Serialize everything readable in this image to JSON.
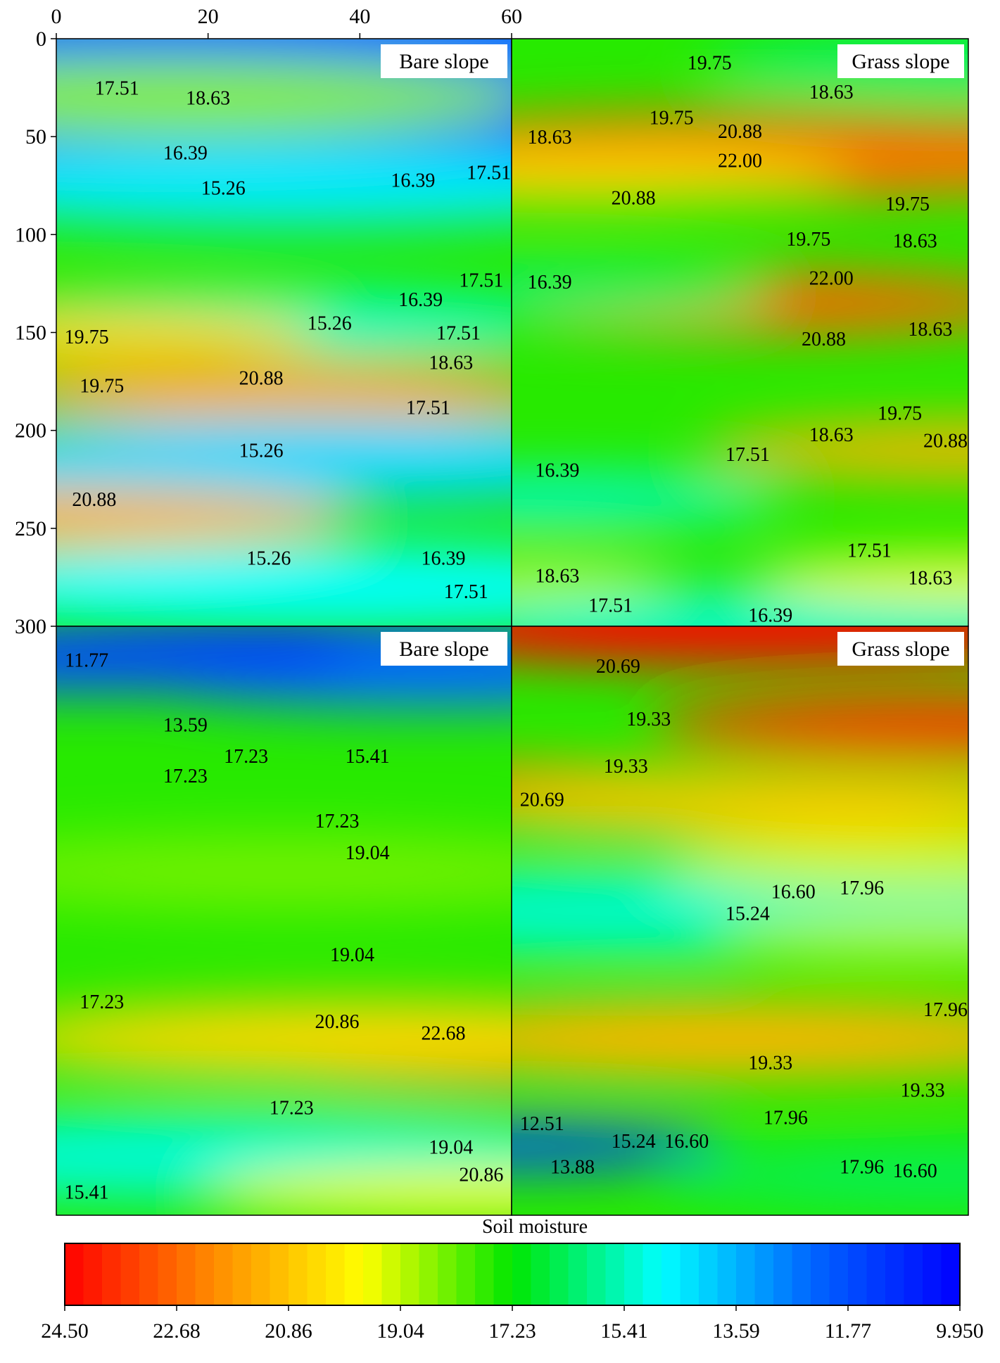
{
  "chart_data": {
    "type": "heatmap",
    "colorbar_title": "Soil moisture",
    "colorbar_ticks": [
      "24.50",
      "22.68",
      "20.86",
      "19.04",
      "17.23",
      "15.41",
      "13.59",
      "11.77",
      "9.950"
    ],
    "colorbar_range": [
      24.5,
      9.95
    ],
    "colormap": [
      "#ff0000",
      "#ff8c00",
      "#ffff00",
      "#00e600",
      "#00ffff",
      "#0066ff",
      "#0000ff"
    ],
    "x_axis": {
      "range": [
        0,
        60
      ],
      "ticks": [
        "0",
        "20",
        "40",
        "60"
      ]
    },
    "y_axis": {
      "range": [
        0,
        300
      ],
      "ticks": [
        "0",
        "50",
        "100",
        "150",
        "200",
        "250",
        "300"
      ]
    },
    "panels": [
      {
        "label": "Bare slope",
        "position": "top-left",
        "blobs": [
          {
            "x": 24,
            "y": 30,
            "r": 90,
            "v": 11
          },
          {
            "x": 60,
            "y": 0,
            "r": 60,
            "v": 12.5
          },
          {
            "x": 30,
            "y": 75,
            "r": 38,
            "v": 14.5
          },
          {
            "x": 28,
            "y": 145,
            "r": 30,
            "v": 15.3
          },
          {
            "x": 30,
            "y": 180,
            "r": 28,
            "v": 21.5
          },
          {
            "x": 35,
            "y": 215,
            "r": 40,
            "v": 14.2
          },
          {
            "x": 35,
            "y": 280,
            "r": 40,
            "v": 14.8
          },
          {
            "x": 0,
            "y": 150,
            "r": 25,
            "v": 20.5
          },
          {
            "x": 0,
            "y": 245,
            "r": 28,
            "v": 21.3
          },
          {
            "x": 15,
            "y": 30,
            "r": 35,
            "v": 18.5
          }
        ],
        "labels": [
          {
            "text": "17.51",
            "x": 8,
            "y": 25
          },
          {
            "text": "18.63",
            "x": 20,
            "y": 30
          },
          {
            "text": "16.39",
            "x": 17,
            "y": 58
          },
          {
            "text": "15.26",
            "x": 22,
            "y": 76
          },
          {
            "text": "16.39",
            "x": 47,
            "y": 72
          },
          {
            "text": "17.51",
            "x": 57,
            "y": 68
          },
          {
            "text": "17.51",
            "x": 56,
            "y": 123
          },
          {
            "text": "16.39",
            "x": 48,
            "y": 133
          },
          {
            "text": "15.26",
            "x": 36,
            "y": 145
          },
          {
            "text": "17.51",
            "x": 53,
            "y": 150
          },
          {
            "text": "19.75",
            "x": 4,
            "y": 152
          },
          {
            "text": "18.63",
            "x": 52,
            "y": 165
          },
          {
            "text": "19.75",
            "x": 6,
            "y": 177
          },
          {
            "text": "20.88",
            "x": 27,
            "y": 173
          },
          {
            "text": "17.51",
            "x": 49,
            "y": 188
          },
          {
            "text": "15.26",
            "x": 27,
            "y": 210
          },
          {
            "text": "20.88",
            "x": 5,
            "y": 235
          },
          {
            "text": "15.26",
            "x": 28,
            "y": 265
          },
          {
            "text": "16.39",
            "x": 51,
            "y": 265
          },
          {
            "text": "17.51",
            "x": 54,
            "y": 282
          }
        ]
      },
      {
        "label": "Grass slope",
        "position": "top-right",
        "blobs": [
          {
            "x": 30,
            "y": 60,
            "r": 40,
            "v": 23
          },
          {
            "x": 60,
            "y": 60,
            "r": 35,
            "v": 22.5
          },
          {
            "x": 10,
            "y": 70,
            "r": 25,
            "v": 20.5
          },
          {
            "x": 32,
            "y": 135,
            "r": 28,
            "v": 22.8
          },
          {
            "x": 0,
            "y": 130,
            "r": 25,
            "v": 16.2
          },
          {
            "x": 5,
            "y": 235,
            "r": 22,
            "v": 15.2
          },
          {
            "x": 35,
            "y": 300,
            "r": 35,
            "v": 15.3
          },
          {
            "x": 60,
            "y": 210,
            "r": 25,
            "v": 21.3
          },
          {
            "x": 60,
            "y": 275,
            "r": 20,
            "v": 19.8
          },
          {
            "x": 60,
            "y": 15,
            "r": 25,
            "v": 16
          },
          {
            "x": 0,
            "y": 275,
            "r": 15,
            "v": 19.2
          }
        ],
        "labels": [
          {
            "text": "19.75",
            "x": 26,
            "y": 12
          },
          {
            "text": "18.63",
            "x": 42,
            "y": 27
          },
          {
            "text": "19.75",
            "x": 21,
            "y": 40
          },
          {
            "text": "18.63",
            "x": 5,
            "y": 50
          },
          {
            "text": "20.88",
            "x": 30,
            "y": 47
          },
          {
            "text": "22.00",
            "x": 30,
            "y": 62
          },
          {
            "text": "20.88",
            "x": 16,
            "y": 81
          },
          {
            "text": "19.75",
            "x": 52,
            "y": 84
          },
          {
            "text": "19.75",
            "x": 39,
            "y": 102
          },
          {
            "text": "18.63",
            "x": 53,
            "y": 103
          },
          {
            "text": "16.39",
            "x": 5,
            "y": 124
          },
          {
            "text": "22.00",
            "x": 42,
            "y": 122
          },
          {
            "text": "20.88",
            "x": 41,
            "y": 153
          },
          {
            "text": "18.63",
            "x": 55,
            "y": 148
          },
          {
            "text": "19.75",
            "x": 51,
            "y": 191
          },
          {
            "text": "18.63",
            "x": 42,
            "y": 202
          },
          {
            "text": "20.88",
            "x": 57,
            "y": 205
          },
          {
            "text": "17.51",
            "x": 31,
            "y": 212
          },
          {
            "text": "16.39",
            "x": 6,
            "y": 220
          },
          {
            "text": "17.51",
            "x": 47,
            "y": 261
          },
          {
            "text": "18.63",
            "x": 55,
            "y": 275
          },
          {
            "text": "18.63",
            "x": 6,
            "y": 274
          },
          {
            "text": "17.51",
            "x": 13,
            "y": 289
          },
          {
            "text": "16.39",
            "x": 34,
            "y": 294
          }
        ]
      },
      {
        "label": "Bare slope",
        "position": "bottom-left",
        "blobs": [
          {
            "x": 25,
            "y": 15,
            "r": 35,
            "v": 10.5
          },
          {
            "x": 50,
            "y": 25,
            "r": 30,
            "v": 12.5
          },
          {
            "x": 5,
            "y": 20,
            "r": 25,
            "v": 11.8
          },
          {
            "x": 58,
            "y": 220,
            "r": 25,
            "v": 23.2
          },
          {
            "x": 40,
            "y": 210,
            "r": 35,
            "v": 20.5
          },
          {
            "x": 30,
            "y": 125,
            "r": 35,
            "v": 18.3
          },
          {
            "x": 20,
            "y": 270,
            "r": 40,
            "v": 15.2
          },
          {
            "x": 58,
            "y": 290,
            "r": 15,
            "v": 21.5
          },
          {
            "x": 55,
            "y": 290,
            "r": 25,
            "v": 19.5
          }
        ],
        "labels": [
          {
            "text": "11.77",
            "x": 4,
            "y": 17
          },
          {
            "text": "13.59",
            "x": 17,
            "y": 50
          },
          {
            "text": "17.23",
            "x": 25,
            "y": 66
          },
          {
            "text": "17.23",
            "x": 17,
            "y": 76
          },
          {
            "text": "15.41",
            "x": 41,
            "y": 66
          },
          {
            "text": "17.23",
            "x": 37,
            "y": 99
          },
          {
            "text": "19.04",
            "x": 41,
            "y": 115
          },
          {
            "text": "19.04",
            "x": 39,
            "y": 167
          },
          {
            "text": "17.23",
            "x": 6,
            "y": 191
          },
          {
            "text": "20.86",
            "x": 37,
            "y": 201
          },
          {
            "text": "22.68",
            "x": 51,
            "y": 207
          },
          {
            "text": "17.23",
            "x": 31,
            "y": 245
          },
          {
            "text": "19.04",
            "x": 52,
            "y": 265
          },
          {
            "text": "20.86",
            "x": 56,
            "y": 279
          },
          {
            "text": "15.41",
            "x": 4,
            "y": 288
          }
        ]
      },
      {
        "label": "Grass slope",
        "position": "bottom-right",
        "blobs": [
          {
            "x": 30,
            "y": 0,
            "r": 35,
            "v": 24.5
          },
          {
            "x": 60,
            "y": 50,
            "r": 30,
            "v": 23.5
          },
          {
            "x": 0,
            "y": 85,
            "r": 25,
            "v": 23
          },
          {
            "x": 15,
            "y": 145,
            "r": 40,
            "v": 15.3
          },
          {
            "x": 30,
            "y": 210,
            "r": 35,
            "v": 21.2
          },
          {
            "x": 0,
            "y": 265,
            "r": 20,
            "v": 11.5
          },
          {
            "x": 55,
            "y": 280,
            "r": 25,
            "v": 16.3
          },
          {
            "x": 55,
            "y": 160,
            "r": 20,
            "v": 19
          },
          {
            "x": 35,
            "y": 90,
            "r": 30,
            "v": 20.8
          },
          {
            "x": 55,
            "y": 120,
            "r": 25,
            "v": 19.2
          }
        ],
        "labels": [
          {
            "text": "20.69",
            "x": 14,
            "y": 20
          },
          {
            "text": "19.33",
            "x": 18,
            "y": 47
          },
          {
            "text": "19.33",
            "x": 15,
            "y": 71
          },
          {
            "text": "20.69",
            "x": 4,
            "y": 88
          },
          {
            "text": "16.60",
            "x": 37,
            "y": 135
          },
          {
            "text": "17.96",
            "x": 46,
            "y": 133
          },
          {
            "text": "15.24",
            "x": 31,
            "y": 146
          },
          {
            "text": "17.96",
            "x": 57,
            "y": 195
          },
          {
            "text": "19.33",
            "x": 34,
            "y": 222
          },
          {
            "text": "19.33",
            "x": 54,
            "y": 236
          },
          {
            "text": "17.96",
            "x": 36,
            "y": 250
          },
          {
            "text": "12.51",
            "x": 4,
            "y": 253
          },
          {
            "text": "15.24",
            "x": 16,
            "y": 262
          },
          {
            "text": "16.60",
            "x": 23,
            "y": 262
          },
          {
            "text": "13.88",
            "x": 8,
            "y": 275
          },
          {
            "text": "17.96",
            "x": 46,
            "y": 275
          },
          {
            "text": "16.60",
            "x": 53,
            "y": 277
          }
        ]
      }
    ]
  }
}
